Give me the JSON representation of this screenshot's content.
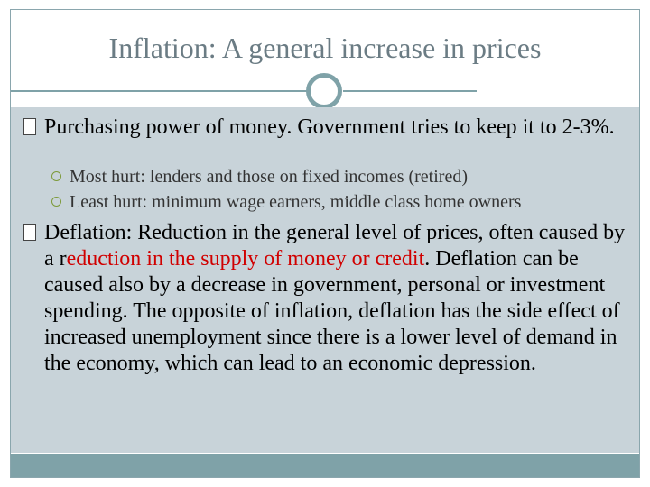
{
  "slide": {
    "title": "Inflation:  A general increase in prices",
    "bullets": [
      {
        "text": "Purchasing power of money.  Government tries to keep it to 2-3%.",
        "subitems": [
          "Most hurt: lenders and those on fixed incomes (retired)",
          "Least hurt: minimum wage earners, middle class home owners"
        ]
      },
      {
        "text_before": "Deflation:  Reduction in the general level of prices, often caused by a r",
        "text_red": "eduction in the supply of money or credit",
        "text_after": ". Deflation can be caused also by a decrease in government, personal or investment spending. The opposite of inflation, deflation has the side effect of increased unemployment since there is a lower level of demand in the economy, which can lead to an economic depression."
      }
    ]
  },
  "colors": {
    "accent": "#7fa2a8",
    "content_bg": "#c8d3d9",
    "title": "#6b7c84",
    "highlight": "#d00000",
    "sub_marker": "#7d9a3a"
  }
}
